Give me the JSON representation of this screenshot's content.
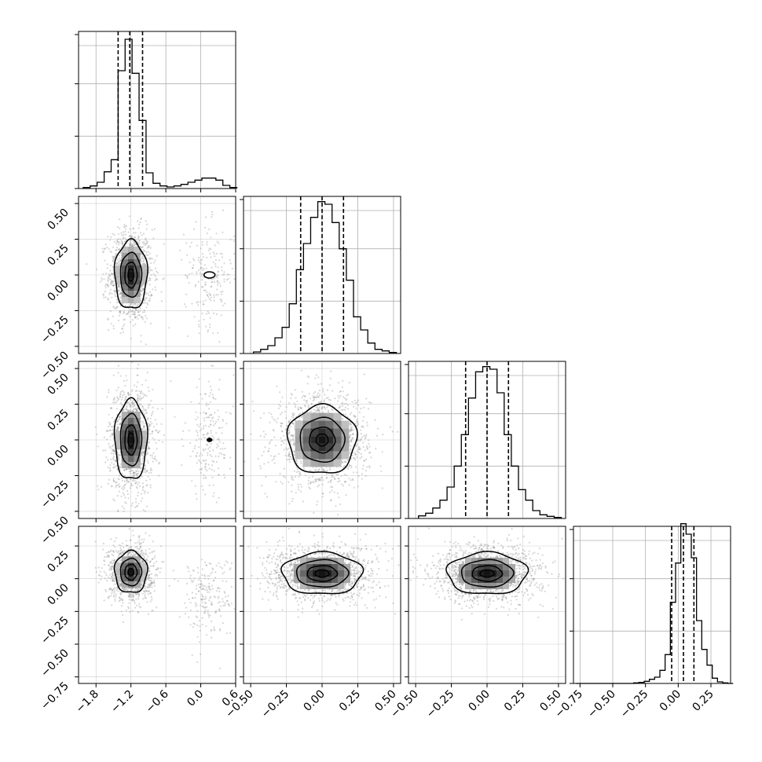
{
  "figure": {
    "type": "corner-plot",
    "variables": 4,
    "quantile_lines": "dashed",
    "grid": true,
    "colors": {
      "hist": "#000000",
      "contour": "#000000",
      "scatter": "#8c8c8c",
      "grid": "#b0b0b0"
    }
  },
  "chart_data": [
    {
      "type": "histogram",
      "panel": "diag-0",
      "xlim": [
        -2.1,
        0.6
      ],
      "density_scale_max": 3.0,
      "yticks": [
        1,
        2
      ],
      "bins_x0": [
        -2.02,
        -1.9,
        -1.78,
        -1.66,
        -1.54,
        -1.42,
        -1.3,
        -1.18,
        -1.06,
        -0.94,
        -0.82,
        -0.7,
        -0.58,
        -0.46,
        -0.34,
        -0.22,
        -0.1,
        0.02,
        0.14,
        0.26,
        0.38,
        0.5
      ],
      "bin_width": 0.12,
      "counts": [
        0.02,
        0.05,
        0.12,
        0.32,
        0.55,
        2.25,
        2.85,
        2.2,
        1.3,
        0.3,
        0.1,
        0.05,
        0.03,
        0.05,
        0.08,
        0.12,
        0.16,
        0.2,
        0.2,
        0.16,
        0.06,
        0.02
      ],
      "quantiles": [
        -1.42,
        -1.22,
        -1.0
      ]
    },
    {
      "type": "histogram",
      "panel": "diag-1",
      "xlim": [
        -0.55,
        0.55
      ],
      "density_scale_max": 3.0,
      "yticks": [
        1,
        2
      ],
      "bins_x0": [
        -0.48,
        -0.43,
        -0.38,
        -0.33,
        -0.28,
        -0.23,
        -0.18,
        -0.13,
        -0.08,
        -0.03,
        0.02,
        0.07,
        0.12,
        0.17,
        0.22,
        0.27,
        0.32,
        0.37,
        0.42,
        0.47
      ],
      "bin_width": 0.05,
      "counts": [
        0.03,
        0.08,
        0.15,
        0.3,
        0.5,
        0.95,
        1.6,
        2.1,
        2.6,
        2.9,
        2.85,
        2.5,
        2.0,
        1.4,
        0.7,
        0.45,
        0.2,
        0.08,
        0.05,
        0.02
      ],
      "quantiles": [
        -0.15,
        0.0,
        0.15
      ]
    },
    {
      "type": "histogram",
      "panel": "diag-2",
      "xlim": [
        -0.55,
        0.55
      ],
      "density_scale_max": 3.0,
      "yticks": [
        1,
        2
      ],
      "bins_x0": [
        -0.48,
        -0.43,
        -0.38,
        -0.33,
        -0.28,
        -0.23,
        -0.18,
        -0.13,
        -0.08,
        -0.03,
        0.02,
        0.07,
        0.12,
        0.17,
        0.22,
        0.27,
        0.32,
        0.37,
        0.42,
        0.47
      ],
      "bin_width": 0.05,
      "counts": [
        0.05,
        0.1,
        0.2,
        0.35,
        0.6,
        1.0,
        1.6,
        2.3,
        2.8,
        2.9,
        2.85,
        2.4,
        1.6,
        1.0,
        0.55,
        0.35,
        0.15,
        0.07,
        0.04,
        0.02
      ],
      "quantiles": [
        -0.15,
        0.0,
        0.15
      ]
    },
    {
      "type": "histogram",
      "panel": "diag-3",
      "xlim": [
        -0.8,
        0.4
      ],
      "density_scale_max": 3.0,
      "yticks": [
        1,
        2
      ],
      "bins_x0": [
        -0.78,
        -0.74,
        -0.7,
        -0.66,
        -0.62,
        -0.58,
        -0.54,
        -0.5,
        -0.46,
        -0.42,
        -0.38,
        -0.34,
        -0.3,
        -0.26,
        -0.22,
        -0.18,
        -0.14,
        -0.1,
        -0.06,
        -0.02,
        0.02,
        0.06,
        0.1,
        0.14,
        0.18,
        0.22,
        0.26,
        0.3,
        0.34,
        0.38
      ],
      "bin_width": 0.04,
      "counts": [
        0.0,
        0.0,
        0.0,
        0.0,
        0.0,
        0.0,
        0.0,
        0.0,
        0.0,
        0.0,
        0.0,
        0.01,
        0.02,
        0.04,
        0.08,
        0.12,
        0.25,
        0.55,
        1.55,
        2.3,
        3.05,
        2.85,
        2.4,
        1.2,
        0.65,
        0.35,
        0.1,
        0.03,
        0.01,
        0.0
      ],
      "quantiles": [
        -0.05,
        0.04,
        0.12
      ]
    },
    {
      "type": "2d-density",
      "panel": "r1c0",
      "xlim": [
        -2.1,
        0.6
      ],
      "ylim": [
        -0.55,
        0.55
      ],
      "clusters": [
        {
          "x": -1.2,
          "y": 0.0,
          "sx": 0.14,
          "sy": 0.12,
          "weight": 0.85
        },
        {
          "x": 0.15,
          "y": 0.0,
          "sx": 0.16,
          "sy": 0.13,
          "weight": 0.15
        }
      ]
    },
    {
      "type": "2d-density",
      "panel": "r2c0",
      "xlim": [
        -2.1,
        0.6
      ],
      "ylim": [
        -0.55,
        0.55
      ],
      "clusters": [
        {
          "x": -1.2,
          "y": 0.0,
          "sx": 0.14,
          "sy": 0.14,
          "weight": 0.85
        },
        {
          "x": 0.15,
          "y": 0.0,
          "sx": 0.16,
          "sy": 0.15,
          "weight": 0.15
        }
      ]
    },
    {
      "type": "2d-density",
      "panel": "r2c1",
      "xlim": [
        -0.55,
        0.55
      ],
      "ylim": [
        -0.55,
        0.55
      ],
      "clusters": [
        {
          "x": 0.0,
          "y": 0.0,
          "sx": 0.12,
          "sy": 0.12,
          "weight": 1.0
        }
      ]
    },
    {
      "type": "2d-density",
      "panel": "r3c0",
      "xlim": [
        -2.1,
        0.6
      ],
      "ylim": [
        -0.8,
        0.4
      ],
      "clusters": [
        {
          "x": -1.2,
          "y": 0.05,
          "sx": 0.14,
          "sy": 0.08,
          "weight": 0.85
        },
        {
          "x": 0.1,
          "y": -0.13,
          "sx": 0.17,
          "sy": 0.12,
          "weight": 0.15
        }
      ]
    },
    {
      "type": "2d-density",
      "panel": "r3c1",
      "xlim": [
        -0.55,
        0.55
      ],
      "ylim": [
        -0.8,
        0.4
      ],
      "clusters": [
        {
          "x": 0.0,
          "y": 0.04,
          "sx": 0.14,
          "sy": 0.08,
          "weight": 1.0
        }
      ]
    },
    {
      "type": "2d-density",
      "panel": "r3c2",
      "xlim": [
        -0.55,
        0.55
      ],
      "ylim": [
        -0.8,
        0.4
      ],
      "clusters": [
        {
          "x": 0.0,
          "y": 0.04,
          "sx": 0.14,
          "sy": 0.08,
          "weight": 1.0
        }
      ]
    }
  ],
  "tick_labels": {
    "row1_y": [
      "0.50",
      "0.25",
      "0.00",
      "−0.25",
      "−0.50"
    ],
    "row2_y": [
      "0.50",
      "0.25",
      "0.00",
      "−0.25",
      "−0.50"
    ],
    "row3_y": [
      "0.25",
      "0.00",
      "−0.25",
      "−0.50",
      "−0.75"
    ],
    "col0_x": [
      "−1.8",
      "−1.2",
      "−0.6",
      "0.0",
      "0.6"
    ],
    "col1_x": [
      "−0.50",
      "−0.25",
      "0.00",
      "0.25",
      "0.50"
    ],
    "col2_x": [
      "−0.50",
      "−0.25",
      "0.00",
      "0.25",
      "0.50"
    ],
    "col3_x": [
      "−0.75",
      "−0.50",
      "−0.25",
      "0.00",
      "0.25"
    ]
  },
  "tick_values": {
    "row1_y": [
      0.5,
      0.25,
      0.0,
      -0.25,
      -0.5
    ],
    "row2_y": [
      0.5,
      0.25,
      0.0,
      -0.25,
      -0.5
    ],
    "row3_y": [
      0.25,
      0.0,
      -0.25,
      -0.5,
      -0.75
    ],
    "col0_x": [
      -1.8,
      -1.2,
      -0.6,
      0.0,
      0.6
    ],
    "col1_x": [
      -0.5,
      -0.25,
      0.0,
      0.25,
      0.5
    ],
    "col2_x": [
      -0.5,
      -0.25,
      0.0,
      0.25,
      0.5
    ],
    "col3_x": [
      -0.75,
      -0.5,
      -0.25,
      0.0,
      0.25
    ]
  }
}
